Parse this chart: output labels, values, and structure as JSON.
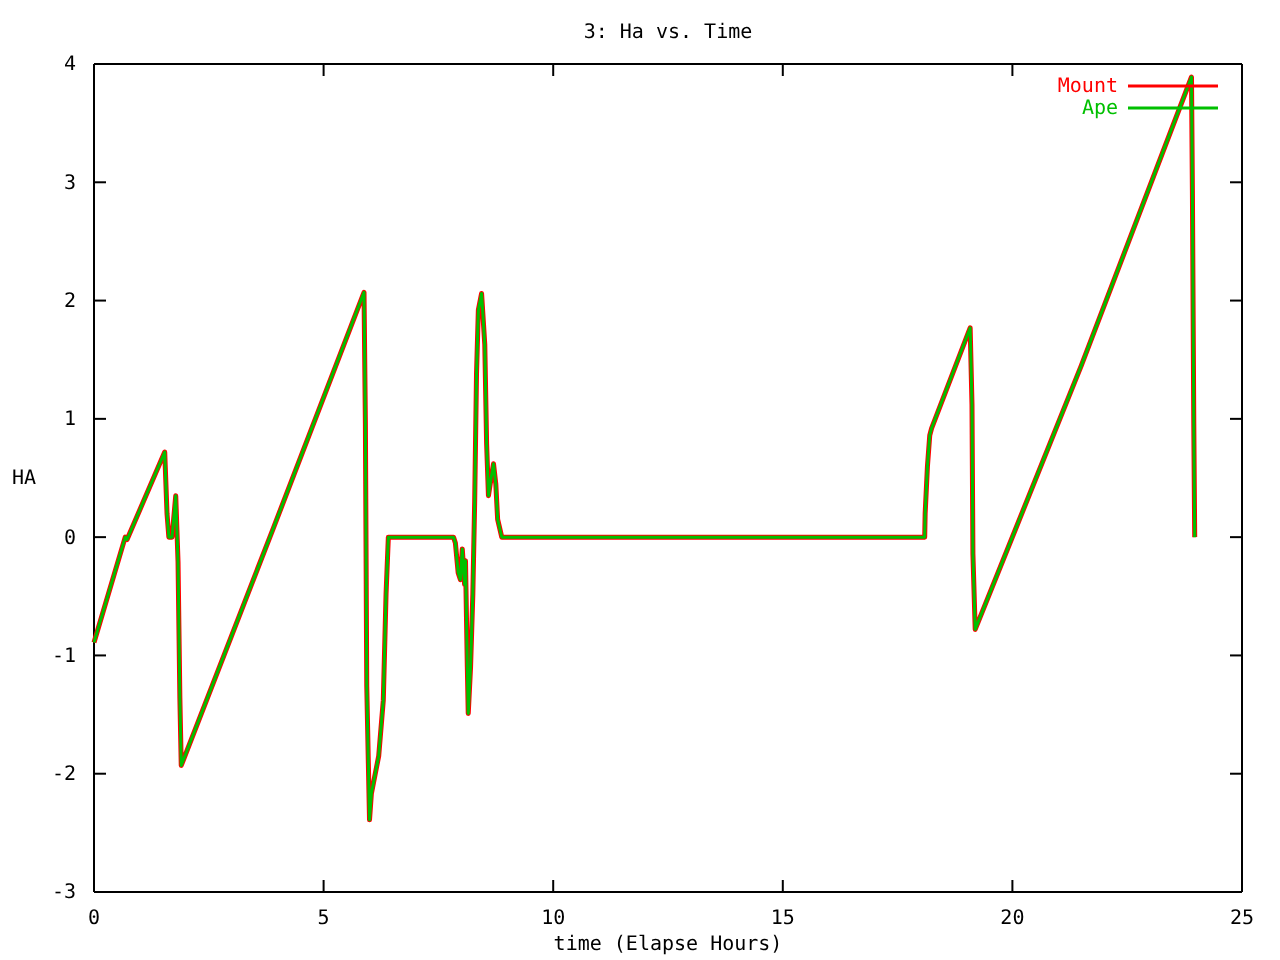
{
  "chart_data": {
    "type": "line",
    "title": "3: Ha vs. Time",
    "xlabel": "time (Elapse Hours)",
    "ylabel": "HA",
    "xlim": [
      0,
      25
    ],
    "ylim": [
      -3,
      4
    ],
    "xticks": [
      0,
      5,
      10,
      15,
      20,
      25
    ],
    "yticks": [
      -3,
      -2,
      -1,
      0,
      1,
      2,
      3,
      4
    ],
    "legend": "top right",
    "grid": false,
    "marker": "none",
    "line_style": "solid",
    "x": [
      0,
      0.68,
      0.72,
      1.54,
      1.59,
      1.63,
      1.7,
      1.78,
      1.83,
      1.87,
      1.9,
      3.9,
      5.88,
      5.91,
      5.94,
      6.0,
      6.04,
      6.2,
      6.3,
      6.36,
      6.41,
      7.83,
      7.87,
      7.93,
      7.98,
      8.02,
      8.07,
      8.09,
      8.13,
      8.15,
      8.2,
      8.25,
      8.29,
      8.33,
      8.37,
      8.44,
      8.51,
      8.55,
      8.59,
      8.64,
      8.7,
      8.75,
      8.79,
      8.88,
      18.09,
      18.1,
      18.15,
      18.2,
      18.24,
      19.08,
      19.12,
      19.14,
      19.19,
      21.5,
      23.9,
      23.92,
      23.95,
      23.97
    ],
    "series": [
      {
        "name": "Mount",
        "color": "#ff0000",
        "values": [
          -0.89,
          0.0,
          -0.02,
          0.72,
          0.2,
          0.0,
          0.0,
          0.35,
          -0.21,
          -1.36,
          -1.93,
          0.07,
          2.07,
          0.96,
          -1.26,
          -2.39,
          -2.17,
          -1.85,
          -1.38,
          -0.48,
          0.0,
          0.0,
          -0.05,
          -0.3,
          -0.36,
          -0.1,
          -0.4,
          -0.2,
          -1.1,
          -1.49,
          -1.1,
          -0.48,
          0.3,
          1.38,
          1.92,
          2.06,
          1.63,
          0.79,
          0.35,
          0.48,
          0.62,
          0.45,
          0.15,
          0.0,
          0.0,
          0.2,
          0.6,
          0.86,
          0.92,
          1.77,
          1.12,
          -0.14,
          -0.78,
          1.45,
          3.89,
          2.93,
          0.96,
          0.0
        ]
      },
      {
        "name": "Ape",
        "color": "#00c000",
        "values": [
          -0.89,
          0.0,
          -0.02,
          0.72,
          0.2,
          0.0,
          0.0,
          0.35,
          -0.21,
          -1.36,
          -1.93,
          0.07,
          2.07,
          0.96,
          -1.26,
          -2.39,
          -2.17,
          -1.85,
          -1.38,
          -0.48,
          0.0,
          0.0,
          -0.05,
          -0.3,
          -0.36,
          -0.1,
          -0.4,
          -0.2,
          -1.1,
          -1.49,
          -1.1,
          -0.48,
          0.3,
          1.38,
          1.92,
          2.06,
          1.63,
          0.79,
          0.35,
          0.48,
          0.62,
          0.45,
          0.15,
          0.0,
          0.0,
          0.2,
          0.6,
          0.86,
          0.92,
          1.77,
          1.12,
          -0.14,
          -0.78,
          1.45,
          3.89,
          2.93,
          0.96,
          0.0
        ]
      }
    ]
  }
}
